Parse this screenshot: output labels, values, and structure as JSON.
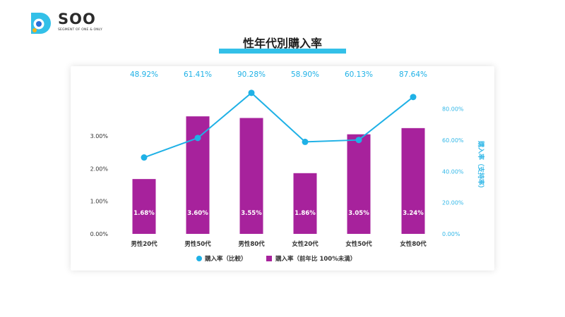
{
  "brand": {
    "name": "SOO",
    "tagline": "SEGMENT OF ONE & ONLY",
    "color": "#33c0e8"
  },
  "page_title": "性年代別購入率",
  "colors": {
    "bar": "#a7229c",
    "line": "#1fb1e6",
    "axis_text": "#333333",
    "right_axis_text": "#33b8e8"
  },
  "chart_data": {
    "type": "bar+line",
    "categories": [
      "男性20代",
      "男性50代",
      "男性80代",
      "女性20代",
      "女性50代",
      "女性80代"
    ],
    "series": [
      {
        "name": "購入率（前年比 100%未満）",
        "type": "bar",
        "axis": "left",
        "values": [
          1.68,
          3.6,
          3.55,
          1.86,
          3.05,
          3.24
        ],
        "labels": [
          "1.68%",
          "3.60%",
          "3.55%",
          "1.86%",
          "3.05%",
          "3.24%"
        ]
      },
      {
        "name": "購入率（比較）",
        "type": "line",
        "axis": "right",
        "values": [
          48.92,
          61.41,
          90.28,
          58.9,
          60.13,
          87.64
        ],
        "labels": [
          "48.92%",
          "61.41%",
          "90.28%",
          "58.90%",
          "60.13%",
          "87.64%"
        ]
      }
    ],
    "left_axis": {
      "ylim": [
        0,
        4.1
      ],
      "ticks": [
        0,
        1,
        2,
        3
      ],
      "tick_labels": [
        "0.00%",
        "1.00%",
        "2.00%",
        "3.00%"
      ]
    },
    "right_axis": {
      "label": "購入率（支持率）",
      "ylim": [
        0,
        85.7
      ],
      "ticks": [
        0,
        20,
        40,
        60,
        80
      ],
      "tick_labels": [
        "0.00%",
        "20.00%",
        "40.00%",
        "60.00%",
        "80.00%"
      ]
    },
    "legend_position": "bottom-center"
  }
}
